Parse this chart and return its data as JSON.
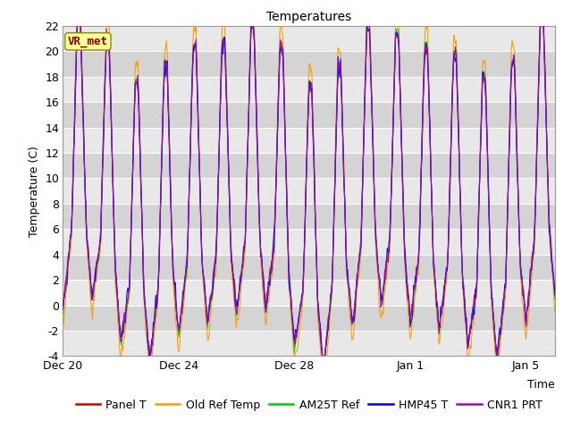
{
  "title": "Temperatures",
  "ylabel": "Temperature (C)",
  "xlabel": "Time",
  "annotation": "VR_met",
  "ylim": [
    -4,
    22
  ],
  "yticks": [
    -4,
    -2,
    0,
    2,
    4,
    6,
    8,
    10,
    12,
    14,
    16,
    18,
    20,
    22
  ],
  "xtick_labels": [
    "Dec 20",
    "Dec 24",
    "Dec 28",
    "Jan 1",
    "Jan 5"
  ],
  "xtick_positions": [
    0,
    4,
    8,
    12,
    16
  ],
  "xlim": [
    0,
    17
  ],
  "series": [
    "Panel T",
    "Old Ref Temp",
    "AM25T Ref",
    "HMP45 T",
    "CNR1 PRT"
  ],
  "colors": [
    "#cc0000",
    "#ff9900",
    "#00cc00",
    "#0000ee",
    "#aa00cc"
  ],
  "fig_bg": "#ffffff",
  "plot_bg_light": "#e8e8e8",
  "plot_bg_dark": "#d4d4d4",
  "n_points": 600,
  "time_end": 17,
  "annotation_bg": "#ffff99",
  "annotation_border": "#888800",
  "annotation_text_color": "#8b0000",
  "title_fontsize": 10,
  "axis_fontsize": 9,
  "tick_fontsize": 9,
  "legend_fontsize": 9
}
